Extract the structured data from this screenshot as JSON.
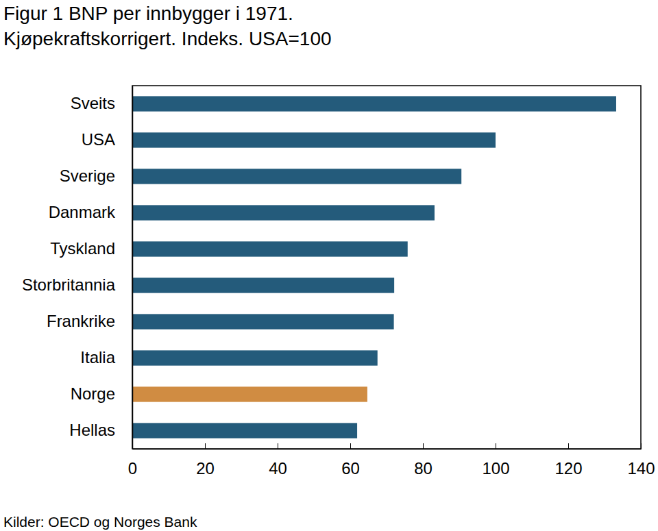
{
  "chart_data": {
    "type": "bar",
    "orientation": "horizontal",
    "title": "Figur 1 BNP per innbygger i 1971.",
    "subtitle": "Kjøpekraftskorrigert. Indeks. USA=100",
    "annotations": [
      "Kilder: OECD og Norges Bank"
    ],
    "categories": [
      "Sveits",
      "USA",
      "Sverige",
      "Danmark",
      "Tyskland",
      "Storbritannia",
      "Frankrike",
      "Italia",
      "Norge",
      "Hellas"
    ],
    "values": [
      133.2,
      100,
      90.6,
      83.2,
      75.8,
      72.1,
      72,
      67.5,
      64.7,
      61.9
    ],
    "colors": [
      "#245b7b",
      "#245b7b",
      "#245b7b",
      "#245b7b",
      "#245b7b",
      "#245b7b",
      "#245b7b",
      "#245b7b",
      "#d08c42",
      "#245b7b"
    ],
    "xlim": [
      0,
      140
    ],
    "xticks": [
      0,
      20,
      40,
      60,
      80,
      100,
      120,
      140
    ],
    "grid": false
  }
}
